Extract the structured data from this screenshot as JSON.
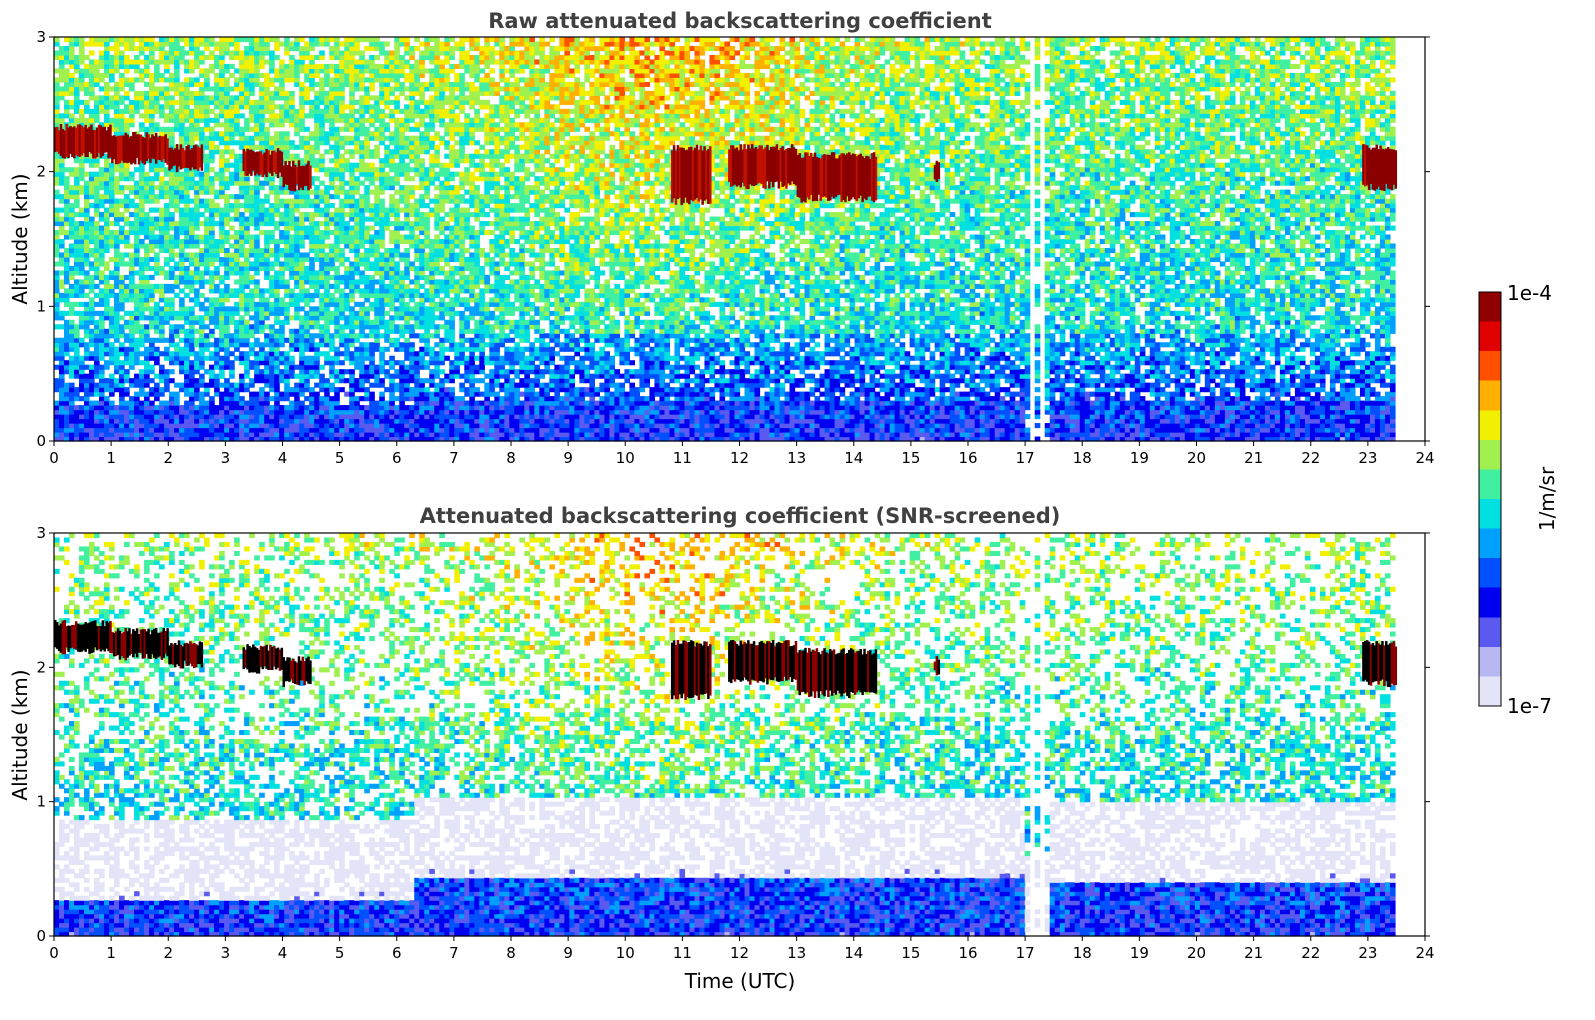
{
  "chart_data": [
    {
      "type": "heatmap",
      "title": "Raw attenuated backscattering coefficient",
      "xlabel": "",
      "ylabel": "Altitude (km)",
      "xlim": [
        0,
        24
      ],
      "ylim": [
        0,
        3
      ],
      "xticks": [
        0,
        1,
        2,
        3,
        4,
        5,
        6,
        7,
        8,
        9,
        10,
        11,
        12,
        13,
        14,
        15,
        16,
        17,
        18,
        19,
        20,
        21,
        22,
        23,
        24
      ],
      "yticks": [
        0,
        1,
        2,
        3
      ],
      "screened": false,
      "data_gaps": [
        [
          17.05,
          17.15
        ],
        [
          17.25,
          17.35
        ],
        [
          23.5,
          24
        ]
      ],
      "cloud_layers": [
        {
          "t0": 0.0,
          "t1": 1.0,
          "base": 2.12,
          "top": 2.33
        },
        {
          "t0": 1.0,
          "t1": 2.0,
          "base": 2.08,
          "top": 2.27
        },
        {
          "t0": 2.0,
          "t1": 2.6,
          "base": 2.02,
          "top": 2.18
        },
        {
          "t0": 3.3,
          "t1": 4.0,
          "base": 1.98,
          "top": 2.15
        },
        {
          "t0": 4.0,
          "t1": 4.5,
          "base": 1.88,
          "top": 2.06
        },
        {
          "t0": 10.8,
          "t1": 11.5,
          "base": 1.78,
          "top": 2.18
        },
        {
          "t0": 11.8,
          "t1": 13.0,
          "base": 1.9,
          "top": 2.18
        },
        {
          "t0": 13.0,
          "t1": 14.4,
          "base": 1.8,
          "top": 2.12
        },
        {
          "t0": 15.4,
          "t1": 15.5,
          "base": 1.95,
          "top": 2.06
        },
        {
          "t0": 22.9,
          "t1": 23.5,
          "base": 1.88,
          "top": 2.18
        }
      ],
      "boundary_layer": [
        {
          "t0": 0,
          "t1": 6.3,
          "height": 0.28
        },
        {
          "t0": 6.3,
          "t1": 17.0,
          "height": 0.3
        },
        {
          "t0": 17.4,
          "t1": 23.5,
          "height": 0.3
        }
      ]
    },
    {
      "type": "heatmap",
      "title": "Attenuated backscattering coefficient (SNR-screened)",
      "xlabel": "Time (UTC)",
      "ylabel": "Altitude (km)",
      "xlim": [
        0,
        24
      ],
      "ylim": [
        0,
        3
      ],
      "xticks": [
        0,
        1,
        2,
        3,
        4,
        5,
        6,
        7,
        8,
        9,
        10,
        11,
        12,
        13,
        14,
        15,
        16,
        17,
        18,
        19,
        20,
        21,
        22,
        23,
        24
      ],
      "yticks": [
        0,
        1,
        2,
        3
      ],
      "screened": true,
      "data_gaps": [
        [
          17.05,
          17.15
        ],
        [
          17.25,
          17.35
        ],
        [
          23.5,
          24
        ]
      ],
      "cloud_layers": [
        {
          "t0": 0.0,
          "t1": 1.0,
          "base": 2.12,
          "top": 2.33
        },
        {
          "t0": 1.0,
          "t1": 2.0,
          "base": 2.08,
          "top": 2.27
        },
        {
          "t0": 2.0,
          "t1": 2.6,
          "base": 2.02,
          "top": 2.18
        },
        {
          "t0": 3.3,
          "t1": 4.0,
          "base": 1.98,
          "top": 2.15
        },
        {
          "t0": 4.0,
          "t1": 4.5,
          "base": 1.88,
          "top": 2.06
        },
        {
          "t0": 10.8,
          "t1": 11.5,
          "base": 1.78,
          "top": 2.18
        },
        {
          "t0": 11.8,
          "t1": 13.0,
          "base": 1.9,
          "top": 2.18
        },
        {
          "t0": 13.0,
          "t1": 14.4,
          "base": 1.8,
          "top": 2.12
        },
        {
          "t0": 15.4,
          "t1": 15.5,
          "base": 1.95,
          "top": 2.06
        },
        {
          "t0": 22.9,
          "t1": 23.5,
          "base": 1.88,
          "top": 2.18
        }
      ],
      "boundary_layer": [
        {
          "t0": 0,
          "t1": 6.3,
          "height": 0.28
        },
        {
          "t0": 6.3,
          "t1": 17.0,
          "height": 0.42
        },
        {
          "t0": 17.4,
          "t1": 23.5,
          "height": 0.4
        }
      ]
    }
  ],
  "colorbar": {
    "label": "1/m/sr",
    "min_label": "1e-7",
    "max_label": "1e-4",
    "scale": "log",
    "range": [
      1e-07,
      0.0001
    ],
    "colors": [
      "#e4e4f8",
      "#b7b7f2",
      "#5a5af0",
      "#0000f0",
      "#0050ff",
      "#00a0ff",
      "#00e0e0",
      "#40f0a0",
      "#a0f050",
      "#f0f000",
      "#ffb000",
      "#ff5000",
      "#e00000",
      "#900000"
    ]
  }
}
